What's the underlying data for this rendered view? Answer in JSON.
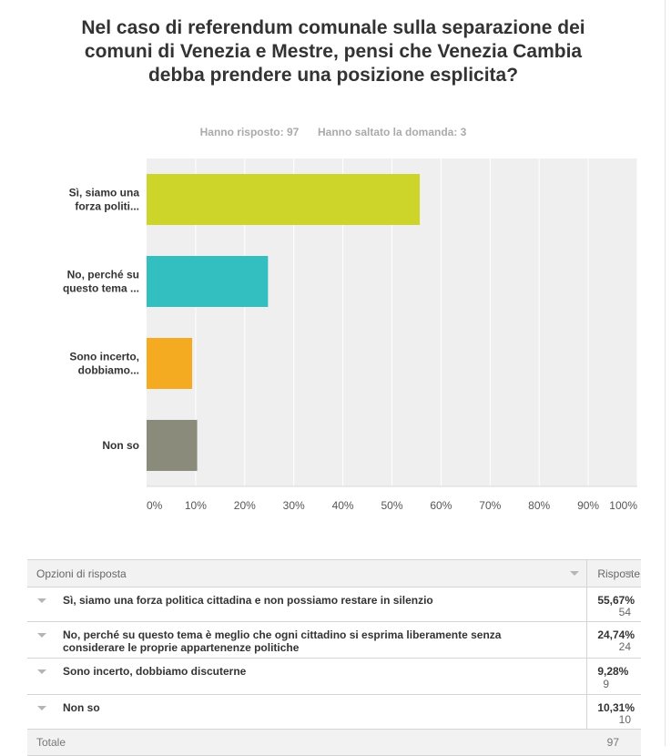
{
  "question": {
    "title": "Nel caso di referendum comunale sulla separazione dei comuni di Venezia e Mestre, pensi che Venezia Cambia debba prendere una posizione esplicita?",
    "answered_label": "Hanno risposto: 97",
    "skipped_label": "Hanno saltato la domanda: 3"
  },
  "chart_data": {
    "type": "bar",
    "orientation": "horizontal",
    "categories": [
      "Sì, siamo una forza politi...",
      "No, perché su questo tema ...",
      "Sono incerto, dobbiamo...",
      "Non so"
    ],
    "values": [
      55.67,
      24.74,
      9.28,
      10.31
    ],
    "x_ticks": [
      "0%",
      "10%",
      "20%",
      "30%",
      "40%",
      "50%",
      "60%",
      "70%",
      "80%",
      "90%",
      "100%"
    ],
    "xlim": [
      0,
      100
    ],
    "grid": true,
    "colors": [
      "#cdd52b",
      "#33bfbf",
      "#f4ab22",
      "#8b8b7b"
    ]
  },
  "table": {
    "header_options": "Opzioni di risposta",
    "header_responses": "Risposte",
    "rows": [
      {
        "option": "Sì, siamo una forza politica cittadina e non possiamo restare in silenzio",
        "percent": "55,67%",
        "count": "54"
      },
      {
        "option": "No, perché su questo tema è meglio che ogni cittadino si esprima liberamente senza considerare le proprie appartenenze politiche",
        "percent": "24,74%",
        "count": "24"
      },
      {
        "option": "Sono incerto, dobbiamo discuterne",
        "percent": "9,28%",
        "count": "9"
      },
      {
        "option": "Non so",
        "percent": "10,31%",
        "count": "10"
      }
    ],
    "total_label": "Totale",
    "total_value": "97"
  }
}
